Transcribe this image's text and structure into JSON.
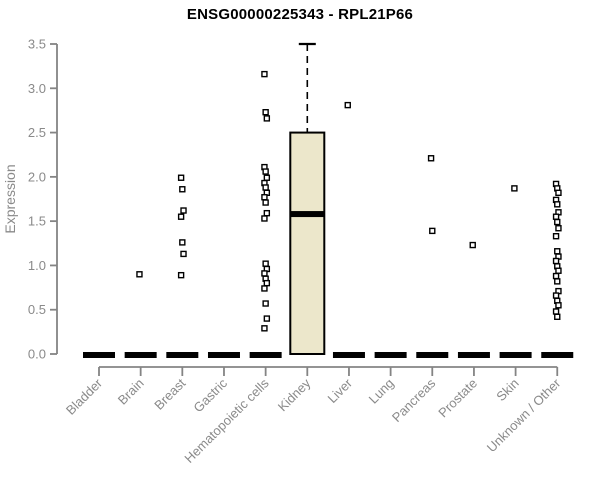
{
  "chart_data": {
    "type": "boxplot",
    "title": "ENSG00000225343 - RPL21P66",
    "ylabel": "Expression",
    "xlabel": "",
    "ylim": [
      0,
      3.5
    ],
    "yticks": [
      "0.0",
      "0.5",
      "1.0",
      "1.5",
      "2.0",
      "2.5",
      "3.0",
      "3.5"
    ],
    "grid": "off",
    "legend": "none",
    "categories": [
      "Bladder",
      "Brain",
      "Breast",
      "Gastric",
      "Hematopoietic cells",
      "Kidney",
      "Liver",
      "Lung",
      "Pancreas",
      "Prostate",
      "Skin",
      "Unknown / Other"
    ],
    "boxes": [
      {
        "category": "Bladder",
        "whisker_low": 0,
        "q1": 0,
        "median": 0,
        "q3": 0,
        "whisker_high": 0,
        "outliers": []
      },
      {
        "category": "Brain",
        "whisker_low": 0,
        "q1": 0,
        "median": 0,
        "q3": 0,
        "whisker_high": 0,
        "outliers": [
          0.9
        ]
      },
      {
        "category": "Breast",
        "whisker_low": 0,
        "q1": 0,
        "median": 0,
        "q3": 0,
        "whisker_high": 0,
        "outliers": [
          1.99,
          1.86,
          1.62,
          1.55,
          1.26,
          1.13,
          0.89
        ]
      },
      {
        "category": "Gastric",
        "whisker_low": 0,
        "q1": 0,
        "median": 0,
        "q3": 0,
        "whisker_high": 0,
        "outliers": []
      },
      {
        "category": "Hematopoietic cells",
        "whisker_low": 0,
        "q1": 0,
        "median": 0,
        "q3": 0,
        "whisker_high": 0,
        "outliers": [
          3.16,
          2.73,
          2.66,
          2.11,
          2.06,
          1.99,
          1.93,
          1.88,
          1.82,
          1.77,
          1.71,
          1.59,
          1.53,
          1.02,
          0.96,
          0.91,
          0.85,
          0.8,
          0.74,
          0.57,
          0.4,
          0.29
        ]
      },
      {
        "category": "Kidney",
        "whisker_low": 0,
        "q1": 0,
        "median": 1.58,
        "q3": 2.5,
        "whisker_high": 3.5,
        "outliers": []
      },
      {
        "category": "Liver",
        "whisker_low": 0,
        "q1": 0,
        "median": 0,
        "q3": 0,
        "whisker_high": 0,
        "outliers": [
          2.81
        ]
      },
      {
        "category": "Lung",
        "whisker_low": 0,
        "q1": 0,
        "median": 0,
        "q3": 0,
        "whisker_high": 0,
        "outliers": []
      },
      {
        "category": "Pancreas",
        "whisker_low": 0,
        "q1": 0,
        "median": 0,
        "q3": 0,
        "whisker_high": 0,
        "outliers": [
          2.21,
          1.39
        ]
      },
      {
        "category": "Prostate",
        "whisker_low": 0,
        "q1": 0,
        "median": 0,
        "q3": 0,
        "whisker_high": 0,
        "outliers": [
          1.23
        ]
      },
      {
        "category": "Skin",
        "whisker_low": 0,
        "q1": 0,
        "median": 0,
        "q3": 0,
        "whisker_high": 0,
        "outliers": [
          1.87
        ]
      },
      {
        "category": "Unknown / Other",
        "whisker_low": 0,
        "q1": 0,
        "median": 0,
        "q3": 0,
        "whisker_high": 0,
        "outliers": [
          1.92,
          1.87,
          1.82,
          1.74,
          1.69,
          1.6,
          1.55,
          1.49,
          1.42,
          1.33,
          1.16,
          1.1,
          1.05,
          0.99,
          0.94,
          0.88,
          0.82,
          0.71,
          0.66,
          0.6,
          0.55,
          0.48,
          0.42
        ]
      }
    ],
    "colors": {
      "box_fill": "#ECE7CB",
      "box_stroke": "#000000",
      "median": "#000000",
      "whisker": "#000000",
      "outlier_fill": "#FFFFFF",
      "outlier_stroke": "#000000",
      "axis": "#848484",
      "tick_text": "#8A8A8A",
      "title_text": "#000000",
      "background": "#FFFFFF"
    },
    "marker": "open-square"
  }
}
